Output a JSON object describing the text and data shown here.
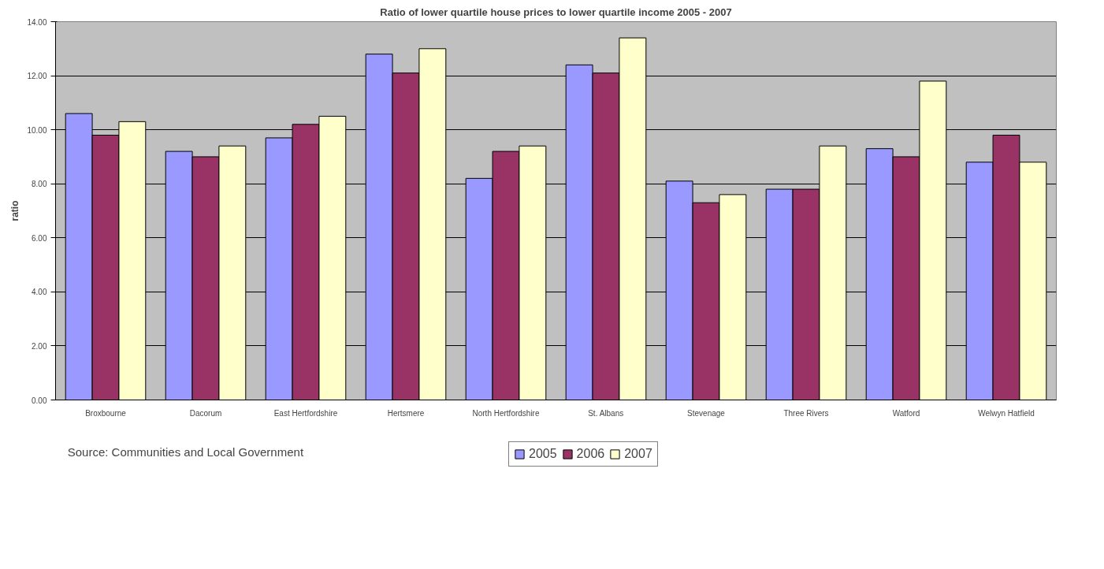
{
  "chart_data": {
    "type": "bar",
    "title": "Ratio of lower quartile house prices to lower quartile income 2005 - 2007",
    "ylabel": "ratio",
    "categories": [
      "Broxbourne",
      "Dacorum",
      "East Hertfordshire",
      "Hertsmere",
      "North Hertfordshire",
      "St. Albans",
      "Stevenage",
      "Three Rivers",
      "Watford",
      "Welwyn Hatfield"
    ],
    "series": [
      {
        "name": "2005",
        "color": "#9999ff",
        "values": [
          10.6,
          9.2,
          9.7,
          12.8,
          8.2,
          12.4,
          8.1,
          7.8,
          9.3,
          8.8
        ]
      },
      {
        "name": "2006",
        "color": "#993366",
        "values": [
          9.8,
          9.0,
          10.2,
          12.1,
          9.2,
          12.1,
          7.3,
          7.8,
          9.0,
          9.8
        ]
      },
      {
        "name": "2007",
        "color": "#ffffcc",
        "values": [
          10.3,
          9.4,
          10.5,
          13.0,
          9.4,
          13.4,
          7.6,
          9.4,
          11.8,
          8.8
        ]
      }
    ],
    "ylim": [
      0,
      14
    ],
    "yticks": [
      {
        "value": 0,
        "label": "0.00"
      },
      {
        "value": 2,
        "label": "2.00"
      },
      {
        "value": 4,
        "label": "4.00"
      },
      {
        "value": 6,
        "label": "6.00"
      },
      {
        "value": 8,
        "label": "8.00"
      },
      {
        "value": 10,
        "label": "10.00"
      },
      {
        "value": 12,
        "label": "12.00"
      },
      {
        "value": 14,
        "label": "14.00"
      }
    ],
    "grid": "y",
    "legend": "bottom",
    "annotations": [
      "Source: Communities and Local Government"
    ]
  }
}
